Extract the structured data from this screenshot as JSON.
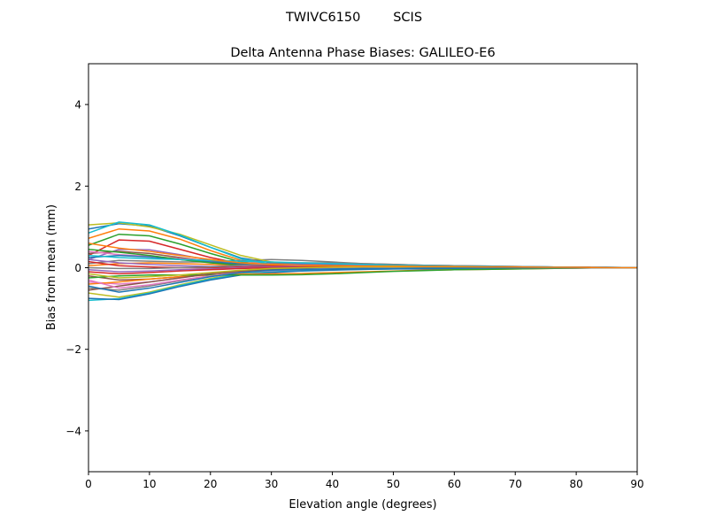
{
  "chart_data": {
    "type": "line",
    "suptitle": "TWIVC6150        SCIS",
    "title": "Delta Antenna Phase Biases: GALILEO-E6",
    "xlabel": "Elevation angle (degrees)",
    "ylabel": "Bias from mean (mm)",
    "xlim": [
      0,
      90
    ],
    "ylim": [
      -5,
      5
    ],
    "xticks": [
      0,
      10,
      20,
      30,
      40,
      50,
      60,
      70,
      80,
      90
    ],
    "yticks": [
      -4,
      -2,
      0,
      2,
      4
    ],
    "ytick_labels": [
      "−4",
      "−2",
      "0",
      "2",
      "4"
    ],
    "grid": false,
    "colors": [
      "#1f77b4",
      "#ff7f0e",
      "#2ca02c",
      "#d62728",
      "#9467bd",
      "#8c564b",
      "#e377c2",
      "#7f7f7f",
      "#bcbd22",
      "#17becf"
    ],
    "x": [
      0,
      5,
      10,
      15,
      20,
      25,
      30,
      35,
      40,
      45,
      50,
      55,
      60,
      65,
      70,
      75,
      80,
      85,
      90
    ],
    "series": [
      {
        "values": [
          0.95,
          1.08,
          1.02,
          0.78,
          0.5,
          0.24,
          0.12,
          0.08,
          0.06,
          0.05,
          0.04,
          0.04,
          0.03,
          0.03,
          0.02,
          0.02,
          0.01,
          0.01,
          0
        ]
      },
      {
        "values": [
          0.72,
          0.95,
          0.9,
          0.7,
          0.42,
          0.18,
          0.08,
          0.06,
          0.05,
          0.05,
          0.04,
          0.03,
          0.03,
          0.02,
          0.02,
          0.01,
          0.01,
          0,
          0
        ]
      },
      {
        "values": [
          0.55,
          0.82,
          0.78,
          0.58,
          0.35,
          0.14,
          0.06,
          0.05,
          0.05,
          0.04,
          0.04,
          0.03,
          0.03,
          0.02,
          0.02,
          0.01,
          0.01,
          0,
          0
        ]
      },
      {
        "values": [
          0.3,
          0.68,
          0.65,
          0.45,
          0.25,
          0.1,
          0.05,
          0.04,
          0.04,
          0.04,
          0.03,
          0.03,
          0.02,
          0.02,
          0.02,
          0.01,
          0.01,
          0,
          0
        ]
      },
      {
        "values": [
          0.2,
          0.45,
          0.44,
          0.32,
          0.18,
          0.08,
          0.05,
          0.05,
          0.04,
          0.04,
          0.03,
          0.03,
          0.02,
          0.02,
          0.01,
          0.01,
          0.01,
          0,
          0
        ]
      },
      {
        "values": [
          0.35,
          0.4,
          0.35,
          0.25,
          0.15,
          0.08,
          0.06,
          0.05,
          0.05,
          0.04,
          0.04,
          0.03,
          0.03,
          0.02,
          0.02,
          0.01,
          0.01,
          0,
          0
        ]
      },
      {
        "values": [
          0.4,
          0.32,
          0.28,
          0.22,
          0.16,
          0.12,
          0.1,
          0.08,
          0.06,
          0.05,
          0.04,
          0.03,
          0.03,
          0.02,
          0.02,
          0.01,
          0.01,
          0,
          0
        ]
      },
      {
        "values": [
          0.1,
          0.18,
          0.16,
          0.14,
          0.14,
          0.18,
          0.2,
          0.18,
          0.14,
          0.1,
          0.08,
          0.06,
          0.05,
          0.04,
          0.03,
          0.02,
          0.01,
          0.01,
          0
        ]
      },
      {
        "values": [
          1.05,
          1.1,
          1.0,
          0.82,
          0.56,
          0.3,
          0.14,
          0.08,
          0.06,
          0.05,
          0.04,
          0.03,
          0.03,
          0.02,
          0.02,
          0.01,
          0.01,
          0,
          0
        ]
      },
      {
        "values": [
          0.85,
          1.12,
          1.05,
          0.8,
          0.5,
          0.22,
          0.08,
          0.05,
          0.04,
          0.04,
          0.03,
          0.03,
          0.02,
          0.02,
          0.02,
          0.01,
          0.01,
          0,
          0
        ]
      },
      {
        "values": [
          0.25,
          0.3,
          0.26,
          0.2,
          0.14,
          0.1,
          0.08,
          0.07,
          0.06,
          0.05,
          0.04,
          0.03,
          0.03,
          0.02,
          0.02,
          0.01,
          0.01,
          0,
          0
        ]
      },
      {
        "values": [
          0.05,
          0.1,
          0.12,
          0.1,
          0.08,
          0.06,
          0.06,
          0.06,
          0.05,
          0.05,
          0.04,
          0.03,
          0.03,
          0.02,
          0.02,
          0.01,
          0.01,
          0,
          0
        ]
      },
      {
        "values": [
          0.45,
          0.38,
          0.3,
          0.2,
          0.12,
          0.06,
          0.04,
          0.04,
          0.04,
          0.04,
          0.03,
          0.03,
          0.02,
          0.02,
          0.02,
          0.01,
          0.01,
          0,
          0
        ]
      },
      {
        "values": [
          0.15,
          0.05,
          0.02,
          0.0,
          0.0,
          0.02,
          0.04,
          0.05,
          0.05,
          0.05,
          0.04,
          0.03,
          0.03,
          0.02,
          0.02,
          0.01,
          0.01,
          0,
          0
        ]
      },
      {
        "values": [
          -0.05,
          -0.1,
          -0.08,
          -0.05,
          -0.03,
          0.0,
          0.02,
          0.04,
          0.05,
          0.05,
          0.04,
          0.03,
          0.03,
          0.02,
          0.02,
          0.01,
          0.01,
          0,
          0
        ]
      },
      {
        "values": [
          -0.2,
          -0.3,
          -0.28,
          -0.22,
          -0.15,
          -0.1,
          -0.08,
          -0.06,
          -0.04,
          -0.02,
          -0.01,
          0.0,
          0.0,
          0.0,
          0.0,
          0.0,
          0.0,
          0,
          0
        ]
      },
      {
        "values": [
          -0.35,
          -0.4,
          -0.35,
          -0.25,
          -0.15,
          -0.08,
          -0.04,
          -0.02,
          0.0,
          0.0,
          0.0,
          0.0,
          0.0,
          0.0,
          0.0,
          0.0,
          0.0,
          0,
          0
        ]
      },
      {
        "values": [
          -0.5,
          -0.55,
          -0.45,
          -0.32,
          -0.2,
          -0.1,
          -0.06,
          -0.04,
          -0.03,
          -0.02,
          -0.02,
          -0.01,
          -0.01,
          -0.01,
          -0.01,
          0.0,
          0.0,
          0,
          0
        ]
      },
      {
        "values": [
          -0.62,
          -0.72,
          -0.6,
          -0.42,
          -0.26,
          -0.14,
          -0.08,
          -0.05,
          -0.04,
          -0.03,
          -0.02,
          -0.02,
          -0.02,
          -0.01,
          -0.01,
          -0.01,
          0.0,
          0,
          0
        ]
      },
      {
        "values": [
          -0.8,
          -0.76,
          -0.62,
          -0.44,
          -0.28,
          -0.16,
          -0.1,
          -0.07,
          -0.05,
          -0.04,
          -0.03,
          -0.02,
          -0.02,
          -0.01,
          -0.01,
          -0.01,
          0.0,
          0,
          0
        ]
      },
      {
        "values": [
          -0.75,
          -0.78,
          -0.64,
          -0.46,
          -0.3,
          -0.18,
          -0.12,
          -0.08,
          -0.06,
          -0.04,
          -0.03,
          -0.03,
          -0.02,
          -0.02,
          -0.01,
          -0.01,
          0.0,
          0,
          0
        ]
      },
      {
        "values": [
          -0.4,
          -0.35,
          -0.28,
          -0.22,
          -0.18,
          -0.16,
          -0.15,
          -0.14,
          -0.12,
          -0.1,
          -0.08,
          -0.06,
          -0.05,
          -0.04,
          -0.03,
          -0.02,
          -0.01,
          0,
          0
        ]
      },
      {
        "values": [
          -0.25,
          -0.2,
          -0.18,
          -0.18,
          -0.18,
          -0.18,
          -0.18,
          -0.17,
          -0.15,
          -0.12,
          -0.09,
          -0.07,
          -0.05,
          -0.04,
          -0.03,
          -0.02,
          -0.01,
          0,
          0
        ]
      },
      {
        "values": [
          -0.1,
          -0.15,
          -0.12,
          -0.08,
          -0.05,
          -0.02,
          0.0,
          0.02,
          0.03,
          0.03,
          0.03,
          0.02,
          0.02,
          0.02,
          0.01,
          0.01,
          0.0,
          0,
          0
        ]
      },
      {
        "values": [
          0.2,
          0.12,
          0.08,
          0.05,
          0.03,
          0.05,
          0.08,
          0.1,
          0.09,
          0.08,
          0.06,
          0.05,
          0.04,
          0.03,
          0.02,
          0.02,
          0.01,
          0,
          0
        ]
      },
      {
        "values": [
          -0.55,
          -0.45,
          -0.35,
          -0.25,
          -0.15,
          -0.08,
          -0.04,
          -0.02,
          -0.01,
          0.0,
          0.0,
          0.0,
          0.0,
          0.0,
          0.0,
          0.0,
          0.0,
          0,
          0
        ]
      },
      {
        "values": [
          -0.3,
          -0.5,
          -0.42,
          -0.3,
          -0.2,
          -0.12,
          -0.07,
          -0.04,
          -0.02,
          -0.01,
          0.0,
          0.0,
          0.0,
          0.0,
          0.0,
          0.0,
          0.0,
          0,
          0
        ]
      },
      {
        "values": [
          0.0,
          -0.02,
          -0.02,
          0.0,
          0.02,
          0.06,
          0.1,
          0.12,
          0.12,
          0.1,
          0.08,
          0.06,
          0.05,
          0.04,
          0.03,
          0.02,
          0.01,
          0,
          0
        ]
      },
      {
        "values": [
          -0.15,
          -0.25,
          -0.22,
          -0.18,
          -0.12,
          -0.06,
          -0.02,
          0.0,
          0.01,
          0.02,
          0.02,
          0.02,
          0.01,
          0.01,
          0.01,
          0.0,
          0.0,
          0,
          0
        ]
      },
      {
        "values": [
          0.3,
          0.25,
          0.22,
          0.2,
          0.18,
          0.16,
          0.14,
          0.12,
          0.1,
          0.08,
          0.06,
          0.05,
          0.04,
          0.03,
          0.02,
          0.02,
          0.01,
          0,
          0
        ]
      },
      {
        "values": [
          -0.45,
          -0.6,
          -0.5,
          -0.36,
          -0.22,
          -0.12,
          -0.06,
          -0.04,
          -0.03,
          -0.02,
          -0.02,
          -0.01,
          -0.01,
          -0.01,
          0.0,
          0.0,
          0.0,
          0,
          0
        ]
      },
      {
        "values": [
          0.6,
          0.48,
          0.4,
          0.3,
          0.2,
          0.12,
          0.08,
          0.06,
          0.05,
          0.04,
          0.04,
          0.03,
          0.03,
          0.02,
          0.02,
          0.01,
          0.01,
          0,
          0
        ]
      }
    ]
  }
}
